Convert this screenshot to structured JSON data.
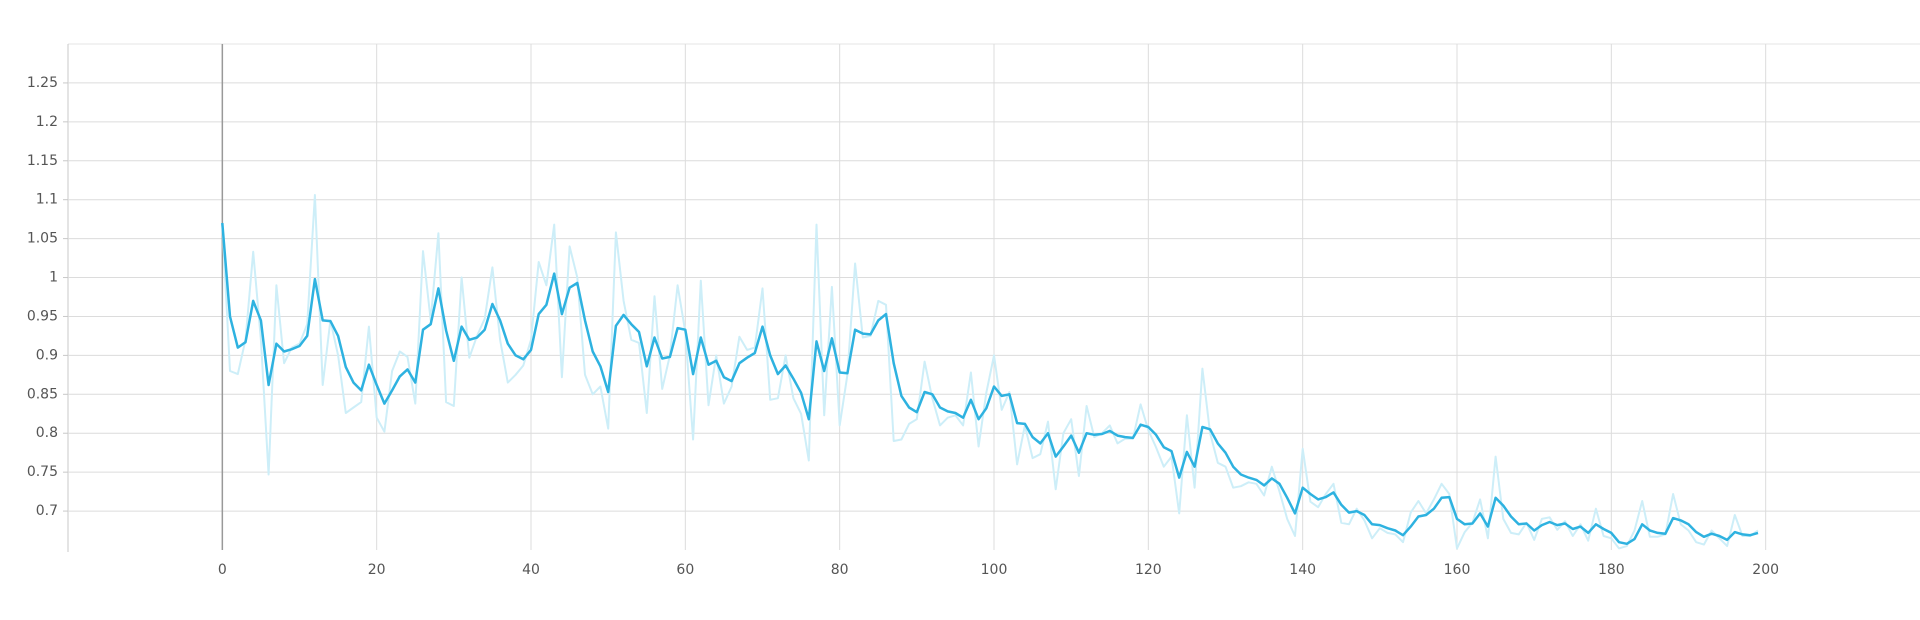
{
  "chart_data": {
    "type": "line",
    "x": [
      0,
      1,
      2,
      3,
      4,
      5,
      6,
      7,
      8,
      9,
      10,
      11,
      12,
      13,
      14,
      15,
      16,
      17,
      18,
      19,
      20,
      21,
      22,
      23,
      24,
      25,
      26,
      27,
      28,
      29,
      30,
      31,
      32,
      33,
      34,
      35,
      36,
      37,
      38,
      39,
      40,
      41,
      42,
      43,
      44,
      45,
      46,
      47,
      48,
      49,
      50,
      51,
      52,
      53,
      54,
      55,
      56,
      57,
      58,
      59,
      60,
      61,
      62,
      63,
      64,
      65,
      66,
      67,
      68,
      69,
      70,
      71,
      72,
      73,
      74,
      75,
      76,
      77,
      78,
      79,
      80,
      81,
      82,
      83,
      84,
      85,
      86,
      87,
      88,
      89,
      90,
      91,
      92,
      93,
      94,
      95,
      96,
      97,
      98,
      99,
      100,
      101,
      102,
      103,
      104,
      105,
      106,
      107,
      108,
      109,
      110,
      111,
      112,
      113,
      114,
      115,
      116,
      117,
      118,
      119,
      120,
      121,
      122,
      123,
      124,
      125,
      126,
      127,
      128,
      129,
      130,
      131,
      132,
      133,
      134,
      135,
      136,
      137,
      138,
      139,
      140,
      141,
      142,
      143,
      144,
      145,
      146,
      147,
      148,
      149,
      150,
      151,
      152,
      153,
      154,
      155,
      156,
      157,
      158,
      159,
      160,
      161,
      162,
      163,
      164,
      165,
      166,
      167,
      168,
      169,
      170,
      171,
      172,
      173,
      174,
      175,
      176,
      177,
      178,
      179,
      180,
      181,
      182,
      183,
      184,
      185,
      186,
      187,
      188,
      189,
      190,
      191,
      192,
      193,
      194,
      195,
      196,
      197,
      198,
      199
    ],
    "series": [
      {
        "color": "#cdeef8",
        "values": [
          1.07,
          0.88,
          0.876,
          0.92,
          1.033,
          0.92,
          0.747,
          0.99,
          0.89,
          0.91,
          0.915,
          0.94,
          1.106,
          0.862,
          0.945,
          0.9,
          0.826,
          0.833,
          0.84,
          0.937,
          0.82,
          0.802,
          0.88,
          0.905,
          0.898,
          0.838,
          1.034,
          0.945,
          1.057,
          0.84,
          0.835,
          1.0,
          0.897,
          0.925,
          0.947,
          1.013,
          0.92,
          0.865,
          0.875,
          0.887,
          0.92,
          1.02,
          0.99,
          1.068,
          0.872,
          1.04,
          1.0,
          0.875,
          0.85,
          0.86,
          0.806,
          1.058,
          0.97,
          0.92,
          0.916,
          0.826,
          0.976,
          0.857,
          0.9,
          0.99,
          0.93,
          0.792,
          0.996,
          0.836,
          0.9,
          0.838,
          0.86,
          0.924,
          0.907,
          0.91,
          0.986,
          0.843,
          0.845,
          0.9,
          0.845,
          0.825,
          0.765,
          1.068,
          0.823,
          0.988,
          0.81,
          0.875,
          1.018,
          0.923,
          0.925,
          0.97,
          0.965,
          0.79,
          0.792,
          0.812,
          0.818,
          0.892,
          0.845,
          0.81,
          0.82,
          0.823,
          0.81,
          0.878,
          0.783,
          0.852,
          0.9,
          0.83,
          0.853,
          0.76,
          0.81,
          0.768,
          0.773,
          0.815,
          0.728,
          0.8,
          0.818,
          0.745,
          0.835,
          0.795,
          0.8,
          0.81,
          0.787,
          0.793,
          0.793,
          0.837,
          0.804,
          0.782,
          0.757,
          0.77,
          0.697,
          0.823,
          0.73,
          0.883,
          0.8,
          0.762,
          0.757,
          0.73,
          0.732,
          0.737,
          0.735,
          0.72,
          0.757,
          0.725,
          0.69,
          0.668,
          0.78,
          0.712,
          0.705,
          0.722,
          0.735,
          0.685,
          0.683,
          0.703,
          0.688,
          0.665,
          0.678,
          0.672,
          0.67,
          0.66,
          0.698,
          0.713,
          0.697,
          0.715,
          0.735,
          0.722,
          0.652,
          0.673,
          0.685,
          0.715,
          0.665,
          0.77,
          0.69,
          0.672,
          0.67,
          0.685,
          0.663,
          0.69,
          0.692,
          0.676,
          0.687,
          0.668,
          0.683,
          0.662,
          0.703,
          0.668,
          0.665,
          0.652,
          0.655,
          0.675,
          0.713,
          0.667,
          0.667,
          0.67,
          0.722,
          0.683,
          0.675,
          0.66,
          0.657,
          0.675,
          0.665,
          0.655,
          0.695,
          0.668,
          0.668,
          0.675
        ]
      },
      {
        "color": "#2eb2e0",
        "values": [
          1.07,
          0.95,
          0.91,
          0.917,
          0.97,
          0.945,
          0.862,
          0.915,
          0.905,
          0.908,
          0.912,
          0.925,
          0.998,
          0.945,
          0.944,
          0.925,
          0.885,
          0.865,
          0.855,
          0.888,
          0.862,
          0.838,
          0.855,
          0.873,
          0.882,
          0.865,
          0.933,
          0.94,
          0.986,
          0.932,
          0.893,
          0.937,
          0.92,
          0.923,
          0.933,
          0.966,
          0.945,
          0.915,
          0.9,
          0.895,
          0.907,
          0.953,
          0.965,
          1.005,
          0.953,
          0.987,
          0.993,
          0.945,
          0.905,
          0.886,
          0.853,
          0.938,
          0.952,
          0.94,
          0.93,
          0.886,
          0.923,
          0.896,
          0.898,
          0.935,
          0.933,
          0.876,
          0.923,
          0.888,
          0.893,
          0.872,
          0.867,
          0.89,
          0.897,
          0.903,
          0.937,
          0.9,
          0.876,
          0.887,
          0.87,
          0.852,
          0.818,
          0.918,
          0.88,
          0.922,
          0.878,
          0.877,
          0.933,
          0.928,
          0.927,
          0.945,
          0.953,
          0.89,
          0.848,
          0.833,
          0.827,
          0.853,
          0.85,
          0.833,
          0.828,
          0.826,
          0.82,
          0.843,
          0.818,
          0.832,
          0.86,
          0.848,
          0.85,
          0.813,
          0.812,
          0.795,
          0.787,
          0.8,
          0.77,
          0.783,
          0.797,
          0.775,
          0.8,
          0.798,
          0.799,
          0.803,
          0.797,
          0.795,
          0.794,
          0.811,
          0.808,
          0.798,
          0.782,
          0.777,
          0.743,
          0.776,
          0.757,
          0.808,
          0.805,
          0.787,
          0.775,
          0.757,
          0.747,
          0.743,
          0.74,
          0.733,
          0.742,
          0.735,
          0.717,
          0.697,
          0.73,
          0.722,
          0.715,
          0.718,
          0.724,
          0.708,
          0.698,
          0.7,
          0.695,
          0.683,
          0.682,
          0.678,
          0.675,
          0.669,
          0.68,
          0.693,
          0.695,
          0.703,
          0.717,
          0.718,
          0.69,
          0.683,
          0.684,
          0.697,
          0.68,
          0.717,
          0.707,
          0.693,
          0.683,
          0.684,
          0.675,
          0.682,
          0.686,
          0.682,
          0.684,
          0.677,
          0.68,
          0.672,
          0.683,
          0.677,
          0.672,
          0.66,
          0.658,
          0.664,
          0.683,
          0.675,
          0.672,
          0.671,
          0.691,
          0.688,
          0.683,
          0.673,
          0.667,
          0.671,
          0.668,
          0.663,
          0.673,
          0.67,
          0.669,
          0.672
        ]
      }
    ],
    "xlim": [
      -20,
      220
    ],
    "xticks": [
      0,
      20,
      40,
      60,
      80,
      100,
      120,
      140,
      160,
      180,
      200
    ],
    "ylim": [
      0.65,
      1.3
    ],
    "yticks": [
      0.7,
      0.75,
      0.8,
      0.85,
      0.9,
      0.95,
      1,
      1.05,
      1.1,
      1.15,
      1.2,
      1.25
    ],
    "grid": true
  }
}
